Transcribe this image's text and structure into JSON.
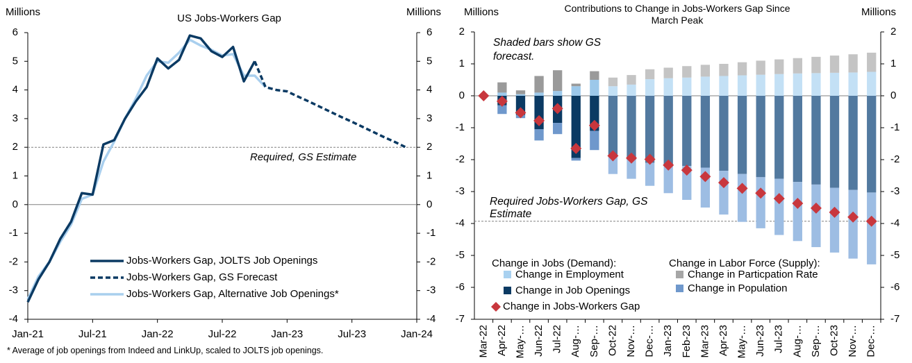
{
  "chart_data": [
    {
      "type": "line",
      "title": "US Jobs-Workers Gap",
      "y_label": "Millions",
      "y2_label": "Millions",
      "x": [
        "Jan-21",
        "Feb-21",
        "Mar-21",
        "Apr-21",
        "May-21",
        "Jun-21",
        "Jul-21",
        "Aug-21",
        "Sep-21",
        "Oct-21",
        "Nov-21",
        "Dec-21",
        "Jan-22",
        "Feb-22",
        "Mar-22",
        "Apr-22",
        "May-22",
        "Jun-22",
        "Jul-22",
        "Aug-22",
        "Sep-22",
        "Oct-22",
        "Nov-22",
        "Dec-22",
        "Jan-23",
        "Feb-23",
        "Mar-23",
        "Apr-23",
        "May-23",
        "Jun-23",
        "Jul-23",
        "Aug-23",
        "Sep-23",
        "Oct-23",
        "Nov-23",
        "Dec-23",
        "Jan-24"
      ],
      "xticks": [
        "Jan-21",
        "Jul-21",
        "Jan-22",
        "Jul-22",
        "Jan-23",
        "Jul-23",
        "Jan-24"
      ],
      "ylim": [
        -4,
        6
      ],
      "yticks": [
        -4,
        -3,
        -2,
        -1,
        0,
        1,
        2,
        3,
        4,
        5,
        6
      ],
      "y2lim": [
        -4,
        6
      ],
      "y2ticks": [
        -4,
        -3,
        -2,
        -1,
        0,
        1,
        2,
        3,
        4,
        5,
        6
      ],
      "series": [
        {
          "name": "Jobs-Workers Gap, JOLTS Job Openings",
          "color": "#0b3a63",
          "dashed": false,
          "values": [
            -3.4,
            -2.6,
            -2.0,
            -1.2,
            -0.6,
            0.4,
            0.35,
            2.1,
            2.25,
            3.0,
            3.6,
            4.1,
            5.1,
            4.75,
            5.05,
            5.9,
            5.8,
            5.35,
            5.15,
            5.5,
            4.3,
            5.0,
            null,
            null,
            null,
            null,
            null,
            null,
            null,
            null,
            null,
            null,
            null,
            null,
            null,
            null,
            null
          ]
        },
        {
          "name": "Jobs-Workers Gap, GS Forecast",
          "color": "#0b3a63",
          "dashed": true,
          "values": [
            null,
            null,
            null,
            null,
            null,
            null,
            null,
            null,
            null,
            null,
            null,
            null,
            null,
            null,
            null,
            null,
            null,
            null,
            null,
            null,
            null,
            5.0,
            4.1,
            4.0,
            3.95,
            3.77,
            3.6,
            3.42,
            3.24,
            3.06,
            2.89,
            2.71,
            2.53,
            2.35,
            2.18,
            2.0,
            null
          ]
        },
        {
          "name": "Jobs-Workers Gap, Alternative Job Openings*",
          "color": "#a9cfee",
          "dashed": false,
          "values": [
            -3.3,
            -2.5,
            -2.0,
            -1.3,
            -0.7,
            0.2,
            0.35,
            1.5,
            2.2,
            3.0,
            3.7,
            4.5,
            5.0,
            4.95,
            5.3,
            5.75,
            5.55,
            5.4,
            5.2,
            5.25,
            4.5,
            4.5,
            4.1,
            null,
            null,
            null,
            null,
            null,
            null,
            null,
            null,
            null,
            null,
            null,
            null,
            null,
            null
          ]
        }
      ],
      "reference_line": {
        "value": 2,
        "label": "Required, GS Estimate"
      },
      "footnote": "* Average of job openings from Indeed and LinkUp, scaled to JOLTS job openings."
    },
    {
      "type": "bar",
      "title": "Contributions to Change in Jobs-Workers Gap Since March Peak",
      "y_label": "Millions",
      "y2_label": "Millions",
      "categories": [
        "Mar-22",
        "Apr-22",
        "May-…",
        "Jun-22",
        "Jul-22",
        "Aug-…",
        "Sep-…",
        "Oct-22",
        "Nov-…",
        "Dec-…",
        "Jan-23",
        "Feb-23",
        "Mar-23",
        "Apr-23",
        "May-…",
        "Jun-23",
        "Jul-23",
        "Aug-…",
        "Sep-…",
        "Oct-23",
        "Nov-…",
        "Dec-…"
      ],
      "ylim": [
        -7,
        2
      ],
      "yticks": [
        -7,
        -6,
        -5,
        -4,
        -3,
        -2,
        -1,
        0,
        1,
        2
      ],
      "y2lim": [
        -7,
        2
      ],
      "y2ticks": [
        -7,
        -6,
        -5,
        -4,
        -3,
        -2,
        -1,
        0,
        1,
        2
      ],
      "legend_headers": [
        "Change in Jobs (Demand):",
        "Change in Labor Force (Supply):"
      ],
      "annotation": "Shaded bars show GS forecast.",
      "series": [
        {
          "name": "Change in Employment",
          "color": "#a9d1f0",
          "values": [
            0,
            0.1,
            0.05,
            0.1,
            0.15,
            0.3,
            0.5,
            0.3,
            0.35,
            0.52,
            0.55,
            0.57,
            0.6,
            0.62,
            0.64,
            0.66,
            0.68,
            0.7,
            0.71,
            0.72,
            0.73,
            0.75
          ],
          "colors": [
            "#9cc8ea",
            "#9cc8ea",
            "#9cc8ea",
            "#9cc8ea",
            "#9cc8ea",
            "#9cc8ea",
            "#9cc8ea",
            "#c3e0f5",
            "#c3e0f5",
            "#c3e0f5",
            "#c3e0f5",
            "#c3e0f5",
            "#c3e0f5",
            "#c3e0f5",
            "#c3e0f5",
            "#c3e0f5",
            "#c3e0f5",
            "#c3e0f5",
            "#c3e0f5",
            "#c3e0f5",
            "#c3e0f5",
            "#c3e0f5"
          ]
        },
        {
          "name": "Change in Job Openings",
          "color": "#0b3a63",
          "values": [
            0,
            -0.3,
            -0.6,
            -1.05,
            -0.85,
            -1.95,
            -1.1,
            -1.9,
            -2.0,
            -2.1,
            -2.15,
            -2.2,
            -2.25,
            -2.35,
            -2.45,
            -2.55,
            -2.6,
            -2.7,
            -2.78,
            -2.88,
            -2.95,
            -3.03
          ],
          "colors": [
            "#0b3a63",
            "#0b3a63",
            "#0b3a63",
            "#0b3a63",
            "#0b3a63",
            "#0b3a63",
            "#0b3a63",
            "#52799f",
            "#52799f",
            "#52799f",
            "#52799f",
            "#52799f",
            "#52799f",
            "#52799f",
            "#52799f",
            "#52799f",
            "#52799f",
            "#52799f",
            "#52799f",
            "#52799f",
            "#52799f",
            "#52799f"
          ]
        },
        {
          "name": "Change in Particpation Rate",
          "color": "#a6a6a6",
          "values": [
            0,
            0.32,
            0.12,
            0.52,
            0.65,
            0.08,
            0.27,
            0.27,
            0.3,
            0.31,
            0.33,
            0.36,
            0.37,
            0.38,
            0.41,
            0.44,
            0.46,
            0.48,
            0.51,
            0.54,
            0.57,
            0.6
          ],
          "colors": [
            "#9a9a9a",
            "#9a9a9a",
            "#9a9a9a",
            "#9a9a9a",
            "#9a9a9a",
            "#9a9a9a",
            "#9a9a9a",
            "#c4c4c4",
            "#c4c4c4",
            "#c4c4c4",
            "#c4c4c4",
            "#c4c4c4",
            "#c4c4c4",
            "#c4c4c4",
            "#c4c4c4",
            "#c4c4c4",
            "#c4c4c4",
            "#c4c4c4",
            "#c4c4c4",
            "#c4c4c4",
            "#c4c4c4",
            "#c4c4c4"
          ]
        },
        {
          "name": "Change in Population",
          "color": "#6f98cc",
          "values": [
            0,
            -0.27,
            -0.1,
            -0.35,
            -0.35,
            -0.08,
            -0.6,
            -0.55,
            -0.6,
            -0.72,
            -0.9,
            -1.06,
            -1.25,
            -1.37,
            -1.5,
            -1.6,
            -1.76,
            -1.85,
            -1.96,
            -2.03,
            -2.15,
            -2.25
          ],
          "colors": [
            "#6f98cc",
            "#6f98cc",
            "#6f98cc",
            "#6f98cc",
            "#6f98cc",
            "#6f98cc",
            "#6f98cc",
            "#9dbde3",
            "#9dbde3",
            "#9dbde3",
            "#9dbde3",
            "#9dbde3",
            "#9dbde3",
            "#9dbde3",
            "#9dbde3",
            "#9dbde3",
            "#9dbde3",
            "#9dbde3",
            "#9dbde3",
            "#9dbde3",
            "#9dbde3",
            "#9dbde3"
          ]
        },
        {
          "name": "Change in Jobs-Workers Gap",
          "color": "#c8373d",
          "marker": "diamond",
          "values": [
            0,
            -0.17,
            -0.53,
            -0.78,
            -0.4,
            -1.65,
            -0.93,
            -1.88,
            -1.95,
            -1.99,
            -2.17,
            -2.33,
            -2.53,
            -2.72,
            -2.9,
            -3.05,
            -3.22,
            -3.37,
            -3.52,
            -3.65,
            -3.8,
            -3.93
          ]
        }
      ],
      "reference_line": {
        "value": -3.93,
        "label": "Required Jobs-Workers Gap, GS Estimate"
      }
    }
  ]
}
